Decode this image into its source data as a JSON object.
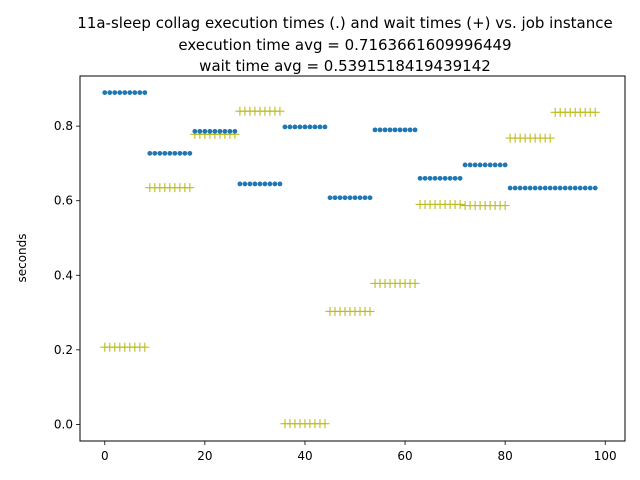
{
  "chart_data": {
    "type": "scatter",
    "title_lines": [
      "11a-sleep collag execution times (.) and wait times (+) vs. job instance",
      "execution time avg = 0.7163661609996449",
      "wait time avg = 0.5391518419439142"
    ],
    "xlabel": "",
    "ylabel": "seconds",
    "xlim": [
      -4.95,
      103.95
    ],
    "ylim": [
      -0.0445,
      0.9345
    ],
    "xticks": [
      0,
      20,
      40,
      60,
      80,
      100
    ],
    "yticks": [
      0.0,
      0.2,
      0.4,
      0.6,
      0.8
    ],
    "ytick_labels": [
      "0.0",
      "0.2",
      "0.4",
      "0.6",
      "0.8"
    ],
    "grid": false,
    "groups": [
      {
        "x_start": 0,
        "x_end": 8,
        "exec": 0.89,
        "wait": 0.207
      },
      {
        "x_start": 9,
        "x_end": 17,
        "exec": 0.727,
        "wait": 0.635
      },
      {
        "x_start": 18,
        "x_end": 26,
        "exec": 0.786,
        "wait": 0.778
      },
      {
        "x_start": 27,
        "x_end": 35,
        "exec": 0.645,
        "wait": 0.84
      },
      {
        "x_start": 36,
        "x_end": 44,
        "exec": 0.798,
        "wait": 0.002
      },
      {
        "x_start": 45,
        "x_end": 53,
        "exec": 0.608,
        "wait": 0.303
      },
      {
        "x_start": 54,
        "x_end": 62,
        "exec": 0.79,
        "wait": 0.378
      },
      {
        "x_start": 63,
        "x_end": 71,
        "exec": 0.66,
        "wait": 0.59
      },
      {
        "x_start": 72,
        "x_end": 80,
        "exec": 0.696,
        "wait": 0.587
      },
      {
        "x_start": 81,
        "x_end": 89,
        "exec": 0.634,
        "wait": 0.768
      },
      {
        "x_start": 90,
        "x_end": 98,
        "exec": 0.634,
        "wait": 0.837
      }
    ],
    "colors": {
      "exec": "#1f77b4",
      "wait": "#bcbd22"
    }
  }
}
